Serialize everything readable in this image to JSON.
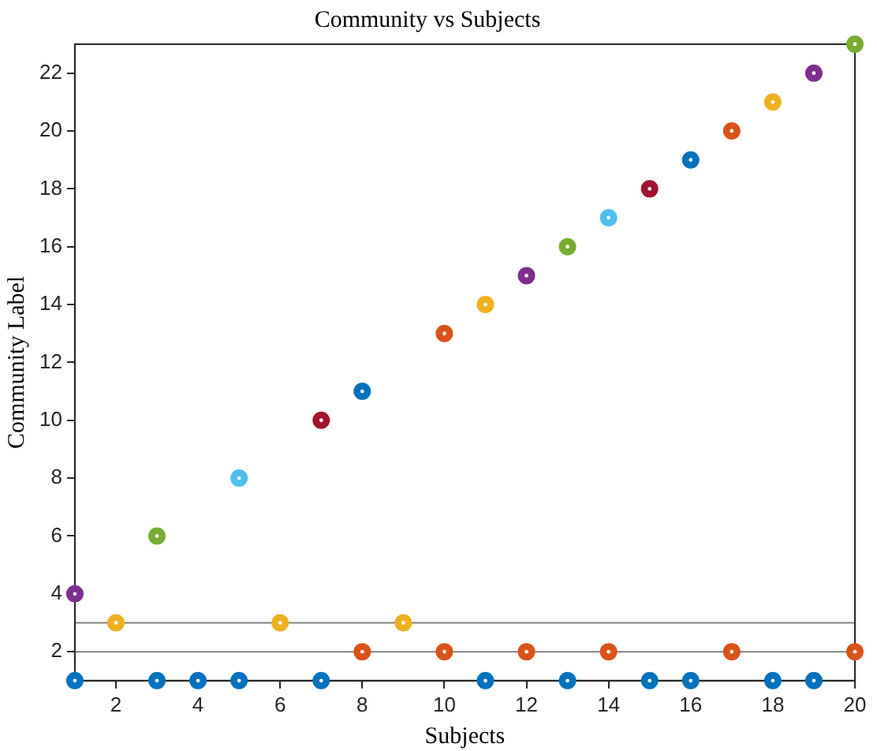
{
  "chart_data": {
    "type": "scatter",
    "title": "Community vs Subjects",
    "xlabel": "Subjects",
    "ylabel": "Community Label",
    "xlim": [
      1,
      20
    ],
    "xticks": [
      2,
      4,
      6,
      8,
      10,
      12,
      14,
      16,
      18,
      20
    ],
    "ylim": [
      1,
      23
    ],
    "yticks": [
      2,
      4,
      6,
      8,
      10,
      12,
      14,
      16,
      18,
      20,
      22
    ],
    "grid": false,
    "legend": false,
    "marker": "circle",
    "ref_lines": [
      {
        "axis": "y",
        "value": 2,
        "color": "#808080"
      },
      {
        "axis": "y",
        "value": 3,
        "color": "#808080"
      }
    ],
    "series": [
      {
        "color": "#0072bd",
        "x": [
          1,
          3,
          4,
          5,
          7,
          11,
          13,
          15,
          16,
          18,
          19,
          8,
          16
        ],
        "values": [
          1,
          1,
          1,
          1,
          1,
          1,
          1,
          1,
          1,
          1,
          1,
          11,
          19
        ]
      },
      {
        "color": "#d95319",
        "x": [
          8,
          10,
          12,
          14,
          17,
          20,
          10,
          17
        ],
        "values": [
          2,
          2,
          2,
          2,
          2,
          2,
          13,
          20
        ]
      },
      {
        "color": "#edb120",
        "x": [
          2,
          6,
          9,
          11,
          18
        ],
        "values": [
          3,
          3,
          3,
          14,
          21
        ]
      },
      {
        "color": "#7e2f8e",
        "x": [
          1,
          12,
          19
        ],
        "values": [
          4,
          15,
          22
        ]
      },
      {
        "color": "#77ac30",
        "x": [
          3,
          13,
          20
        ],
        "values": [
          6,
          16,
          23
        ]
      },
      {
        "color": "#4dbeee",
        "x": [
          5,
          14
        ],
        "values": [
          8,
          17
        ]
      },
      {
        "color": "#a2142f",
        "x": [
          7,
          15
        ],
        "values": [
          10,
          18
        ]
      }
    ]
  }
}
